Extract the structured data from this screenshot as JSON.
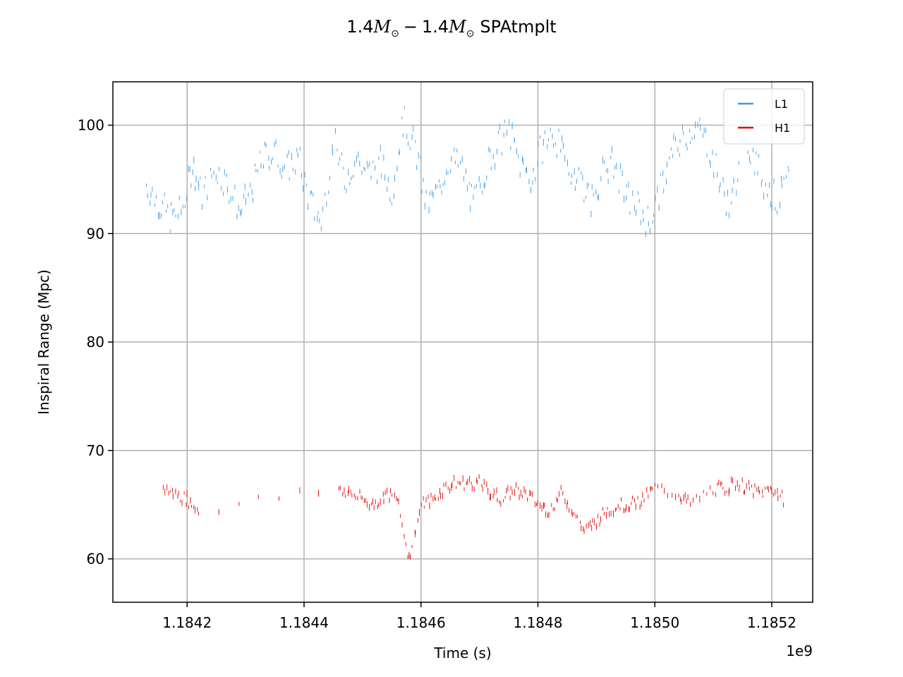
{
  "chart_data": {
    "type": "line",
    "title": {
      "mass1_value": "1.4",
      "mass_symbol": "M",
      "sun_symbol": "⊙",
      "operator": "−",
      "mass2_value": "1.4",
      "suffix": "SPAtmplt"
    },
    "xlabel": "Time (s)",
    "ylabel": "Inspiral Range (Mpc)",
    "x_offset_label": "1e9",
    "x_ticks": [
      {
        "value": 1184200000,
        "label": "1.1842"
      },
      {
        "value": 1184400000,
        "label": "1.1844"
      },
      {
        "value": 1184600000,
        "label": "1.1846"
      },
      {
        "value": 1184800000,
        "label": "1.1848"
      },
      {
        "value": 1185000000,
        "label": "1.1850"
      },
      {
        "value": 1185200000,
        "label": "1.1852"
      }
    ],
    "y_ticks": [
      {
        "value": 60,
        "label": "60"
      },
      {
        "value": 70,
        "label": "70"
      },
      {
        "value": 80,
        "label": "80"
      },
      {
        "value": 90,
        "label": "90"
      },
      {
        "value": 100,
        "label": "100"
      }
    ],
    "xlim": [
      1184073000,
      1185270000
    ],
    "ylim": [
      56.0,
      104.0
    ],
    "grid": true,
    "legend_position": "top-right",
    "series": [
      {
        "name": "L1",
        "color": "#3a9ae8",
        "points": [
          [
            1184130000,
            94.5
          ],
          [
            1184150000,
            93.0
          ],
          [
            1184170000,
            91.5
          ],
          [
            1184190000,
            92.0
          ],
          [
            1184210000,
            96.5
          ],
          [
            1184225000,
            93.5
          ],
          [
            1184250000,
            96.0
          ],
          [
            1184270000,
            94.5
          ],
          [
            1184290000,
            92.0
          ],
          [
            1184310000,
            94.0
          ],
          [
            1184330000,
            97.0
          ],
          [
            1184350000,
            97.5
          ],
          [
            1184370000,
            96.0
          ],
          [
            1184390000,
            97.0
          ],
          [
            1184410000,
            93.0
          ],
          [
            1184430000,
            91.0
          ],
          [
            1184450000,
            98.5
          ],
          [
            1184470000,
            95.0
          ],
          [
            1184490000,
            97.0
          ],
          [
            1184510000,
            95.5
          ],
          [
            1184530000,
            96.5
          ],
          [
            1184550000,
            94.0
          ],
          [
            1184570000,
            100.5
          ],
          [
            1184590000,
            98.0
          ],
          [
            1184610000,
            92.5
          ],
          [
            1184630000,
            94.0
          ],
          [
            1184650000,
            97.0
          ],
          [
            1184670000,
            96.0
          ],
          [
            1184690000,
            92.5
          ],
          [
            1184710000,
            96.0
          ],
          [
            1184730000,
            98.0
          ],
          [
            1184750000,
            99.5
          ],
          [
            1184770000,
            96.5
          ],
          [
            1184790000,
            95.0
          ],
          [
            1184810000,
            98.5
          ],
          [
            1184830000,
            99.0
          ],
          [
            1184850000,
            96.0
          ],
          [
            1184870000,
            95.5
          ],
          [
            1184890000,
            93.0
          ],
          [
            1184910000,
            95.5
          ],
          [
            1184930000,
            96.5
          ],
          [
            1184950000,
            93.5
          ],
          [
            1184970000,
            92.5
          ],
          [
            1184990000,
            91.0
          ],
          [
            1185010000,
            94.0
          ],
          [
            1185030000,
            97.5
          ],
          [
            1185050000,
            99.0
          ],
          [
            1185070000,
            100.0
          ],
          [
            1185090000,
            98.5
          ],
          [
            1185110000,
            95.0
          ],
          [
            1185130000,
            92.0
          ],
          [
            1185150000,
            99.5
          ],
          [
            1185170000,
            97.0
          ],
          [
            1185190000,
            94.5
          ],
          [
            1185210000,
            93.0
          ],
          [
            1185230000,
            95.0
          ]
        ]
      },
      {
        "name": "H1",
        "color": "#e00000",
        "points": [
          [
            1184160000,
            66.5
          ],
          [
            1184180000,
            66.0
          ],
          [
            1184200000,
            65.5
          ],
          [
            1184220000,
            64.5
          ],
          [
            1184460000,
            66.5
          ],
          [
            1184480000,
            66.0
          ],
          [
            1184500000,
            65.5
          ],
          [
            1184520000,
            65.0
          ],
          [
            1184540000,
            66.0
          ],
          [
            1184560000,
            65.5
          ],
          [
            1184580000,
            60.0
          ],
          [
            1184600000,
            65.0
          ],
          [
            1184620000,
            65.5
          ],
          [
            1184640000,
            66.5
          ],
          [
            1184660000,
            67.0
          ],
          [
            1184680000,
            67.0
          ],
          [
            1184700000,
            67.0
          ],
          [
            1184720000,
            66.0
          ],
          [
            1184740000,
            65.5
          ],
          [
            1184760000,
            66.5
          ],
          [
            1184780000,
            66.0
          ],
          [
            1184800000,
            65.0
          ],
          [
            1184820000,
            64.5
          ],
          [
            1184840000,
            66.0
          ],
          [
            1184860000,
            64.5
          ],
          [
            1184880000,
            62.5
          ],
          [
            1184900000,
            63.5
          ],
          [
            1184920000,
            64.5
          ],
          [
            1184940000,
            65.0
          ],
          [
            1184960000,
            65.0
          ],
          [
            1184980000,
            65.5
          ],
          [
            1185000000,
            66.5
          ],
          [
            1185040000,
            66.0
          ],
          [
            1185060000,
            65.0
          ],
          [
            1185100000,
            66.5
          ],
          [
            1185120000,
            66.5
          ],
          [
            1185140000,
            67.0
          ],
          [
            1185160000,
            66.5
          ],
          [
            1185180000,
            66.0
          ],
          [
            1185200000,
            66.5
          ],
          [
            1185220000,
            65.5
          ]
        ]
      }
    ]
  }
}
